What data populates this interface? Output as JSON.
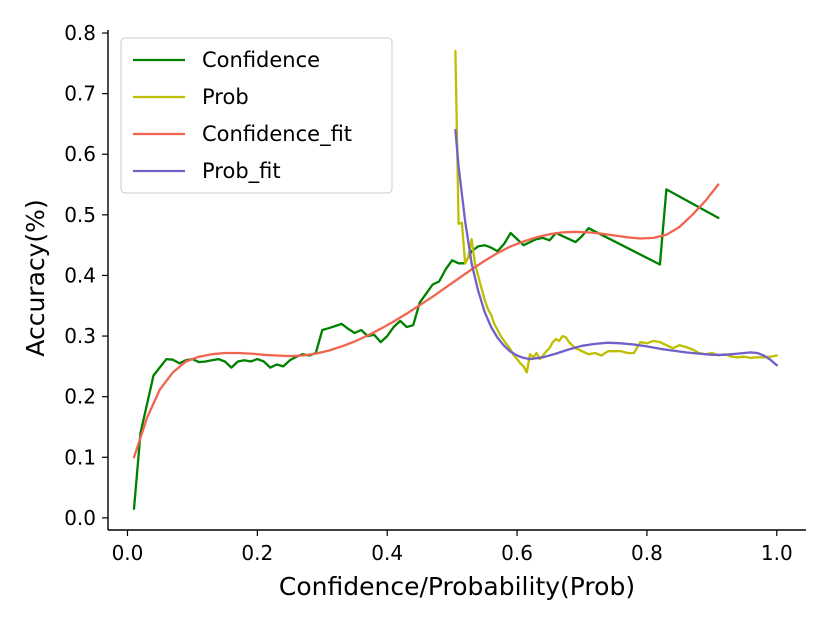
{
  "chart_data": {
    "type": "line",
    "title": "",
    "xlabel": "Confidence/Probability(Prob)",
    "ylabel": "Accuracy(%)",
    "xlim": [
      -0.03,
      1.045
    ],
    "ylim": [
      -0.02,
      0.805
    ],
    "xticks": [
      0.0,
      0.2,
      0.4,
      0.6,
      0.8,
      1.0
    ],
    "xtick_labels": [
      "0.0",
      "0.2",
      "0.4",
      "0.6",
      "0.8",
      "1.0"
    ],
    "yticks": [
      0.0,
      0.1,
      0.2,
      0.3,
      0.4,
      0.5,
      0.6,
      0.7,
      0.8
    ],
    "ytick_labels": [
      "0.0",
      "0.1",
      "0.2",
      "0.3",
      "0.4",
      "0.5",
      "0.6",
      "0.7",
      "0.8"
    ],
    "grid": false,
    "legend_position": "top-left",
    "series": [
      {
        "name": "Confidence",
        "color": "#008000",
        "x": [
          0.01,
          0.02,
          0.04,
          0.06,
          0.07,
          0.08,
          0.09,
          0.1,
          0.11,
          0.12,
          0.13,
          0.14,
          0.15,
          0.16,
          0.17,
          0.18,
          0.19,
          0.2,
          0.21,
          0.22,
          0.23,
          0.24,
          0.25,
          0.26,
          0.27,
          0.28,
          0.29,
          0.3,
          0.31,
          0.33,
          0.34,
          0.35,
          0.36,
          0.37,
          0.38,
          0.39,
          0.4,
          0.41,
          0.42,
          0.43,
          0.44,
          0.45,
          0.46,
          0.47,
          0.48,
          0.49,
          0.5,
          0.51,
          0.52,
          0.53,
          0.54,
          0.55,
          0.56,
          0.57,
          0.58,
          0.59,
          0.6,
          0.61,
          0.62,
          0.63,
          0.64,
          0.65,
          0.66,
          0.67,
          0.68,
          0.69,
          0.7,
          0.71,
          0.82,
          0.83,
          0.91
        ],
        "y": [
          0.015,
          0.14,
          0.235,
          0.262,
          0.261,
          0.255,
          0.26,
          0.262,
          0.257,
          0.258,
          0.26,
          0.262,
          0.258,
          0.248,
          0.258,
          0.26,
          0.258,
          0.262,
          0.258,
          0.248,
          0.253,
          0.25,
          0.26,
          0.266,
          0.27,
          0.268,
          0.272,
          0.31,
          0.313,
          0.32,
          0.312,
          0.305,
          0.31,
          0.3,
          0.302,
          0.29,
          0.3,
          0.315,
          0.325,
          0.315,
          0.318,
          0.355,
          0.37,
          0.385,
          0.39,
          0.41,
          0.425,
          0.42,
          0.42,
          0.44,
          0.448,
          0.45,
          0.446,
          0.44,
          0.452,
          0.47,
          0.46,
          0.45,
          0.455,
          0.46,
          0.462,
          0.458,
          0.47,
          0.465,
          0.46,
          0.455,
          0.465,
          0.478,
          0.418,
          0.542,
          0.495
        ]
      },
      {
        "name": "Prob",
        "color": "#bfbf00",
        "x": [
          0.505,
          0.51,
          0.515,
          0.52,
          0.525,
          0.53,
          0.535,
          0.54,
          0.545,
          0.55,
          0.555,
          0.56,
          0.565,
          0.57,
          0.575,
          0.58,
          0.585,
          0.59,
          0.595,
          0.6,
          0.605,
          0.61,
          0.615,
          0.62,
          0.625,
          0.63,
          0.635,
          0.64,
          0.645,
          0.65,
          0.655,
          0.66,
          0.665,
          0.67,
          0.675,
          0.68,
          0.69,
          0.7,
          0.71,
          0.72,
          0.73,
          0.74,
          0.75,
          0.76,
          0.77,
          0.78,
          0.79,
          0.8,
          0.81,
          0.82,
          0.83,
          0.84,
          0.85,
          0.86,
          0.87,
          0.88,
          0.89,
          0.9,
          0.91,
          0.92,
          0.93,
          0.94,
          0.95,
          0.96,
          0.97,
          0.98,
          0.99,
          1.0
        ],
        "y": [
          0.77,
          0.485,
          0.487,
          0.42,
          0.43,
          0.46,
          0.42,
          0.4,
          0.38,
          0.36,
          0.345,
          0.335,
          0.32,
          0.31,
          0.3,
          0.292,
          0.285,
          0.278,
          0.268,
          0.262,
          0.255,
          0.25,
          0.24,
          0.27,
          0.265,
          0.272,
          0.262,
          0.268,
          0.275,
          0.28,
          0.29,
          0.295,
          0.292,
          0.3,
          0.298,
          0.29,
          0.28,
          0.275,
          0.27,
          0.272,
          0.268,
          0.275,
          0.275,
          0.275,
          0.272,
          0.272,
          0.29,
          0.288,
          0.292,
          0.29,
          0.285,
          0.28,
          0.285,
          0.282,
          0.278,
          0.272,
          0.27,
          0.272,
          0.268,
          0.27,
          0.266,
          0.265,
          0.266,
          0.264,
          0.265,
          0.265,
          0.266,
          0.268
        ]
      },
      {
        "name": "Confidence_fit",
        "color": "#f06450",
        "x": [
          0.01,
          0.03,
          0.05,
          0.07,
          0.09,
          0.11,
          0.13,
          0.15,
          0.17,
          0.19,
          0.21,
          0.23,
          0.25,
          0.27,
          0.29,
          0.31,
          0.33,
          0.35,
          0.37,
          0.39,
          0.41,
          0.43,
          0.45,
          0.47,
          0.49,
          0.51,
          0.53,
          0.55,
          0.57,
          0.59,
          0.61,
          0.63,
          0.65,
          0.67,
          0.69,
          0.71,
          0.73,
          0.75,
          0.77,
          0.79,
          0.81,
          0.83,
          0.85,
          0.87,
          0.89,
          0.91
        ],
        "y": [
          0.1,
          0.165,
          0.212,
          0.24,
          0.258,
          0.266,
          0.27,
          0.272,
          0.272,
          0.271,
          0.269,
          0.268,
          0.267,
          0.268,
          0.271,
          0.276,
          0.283,
          0.291,
          0.301,
          0.312,
          0.324,
          0.337,
          0.351,
          0.365,
          0.38,
          0.395,
          0.41,
          0.424,
          0.437,
          0.448,
          0.456,
          0.463,
          0.468,
          0.471,
          0.472,
          0.471,
          0.469,
          0.466,
          0.463,
          0.461,
          0.462,
          0.467,
          0.48,
          0.5,
          0.523,
          0.55
        ]
      },
      {
        "name": "Prob_fit",
        "color": "#7060c8",
        "x": [
          0.505,
          0.51,
          0.52,
          0.53,
          0.54,
          0.55,
          0.56,
          0.57,
          0.58,
          0.59,
          0.6,
          0.61,
          0.62,
          0.64,
          0.66,
          0.68,
          0.7,
          0.72,
          0.74,
          0.76,
          0.78,
          0.8,
          0.82,
          0.84,
          0.86,
          0.88,
          0.9,
          0.92,
          0.94,
          0.96,
          0.97,
          0.98,
          0.99,
          1.0
        ],
        "y": [
          0.64,
          0.58,
          0.49,
          0.42,
          0.375,
          0.34,
          0.315,
          0.297,
          0.284,
          0.274,
          0.268,
          0.264,
          0.262,
          0.265,
          0.271,
          0.278,
          0.284,
          0.287,
          0.289,
          0.288,
          0.286,
          0.283,
          0.279,
          0.276,
          0.273,
          0.271,
          0.269,
          0.269,
          0.271,
          0.273,
          0.272,
          0.268,
          0.261,
          0.252
        ]
      }
    ]
  }
}
